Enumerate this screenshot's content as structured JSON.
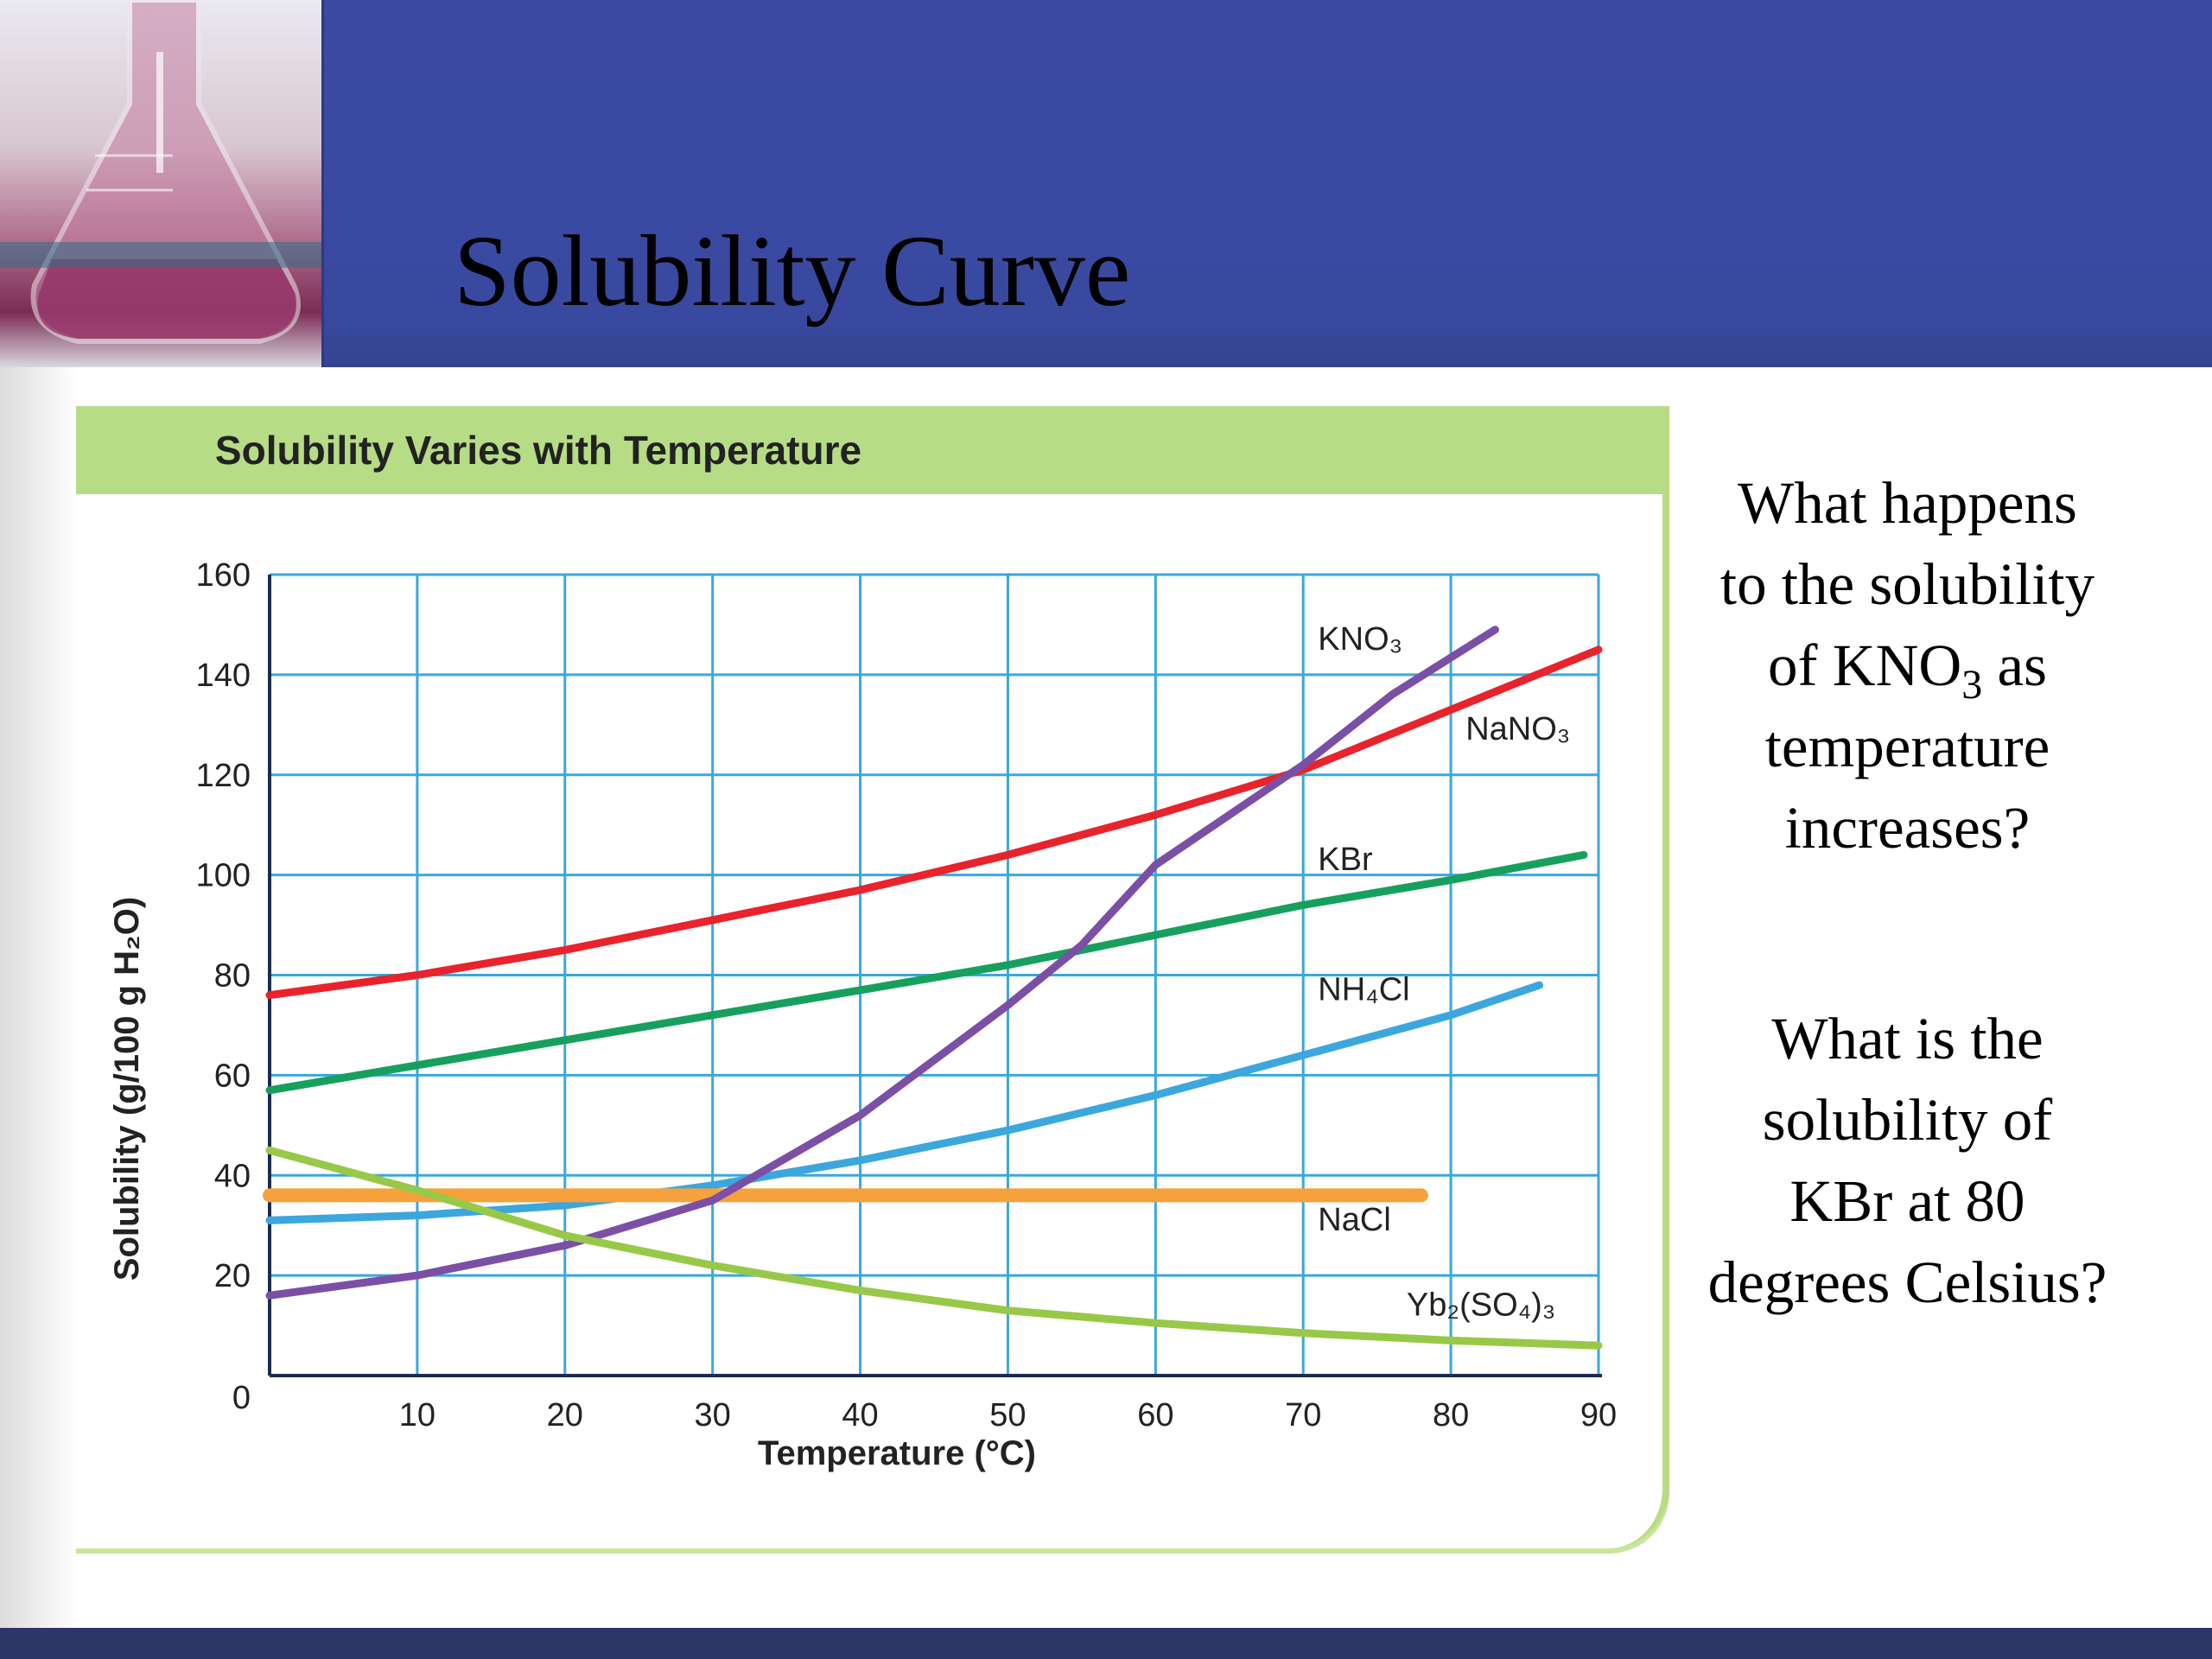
{
  "slide": {
    "title": "Solubility Curve"
  },
  "questions": {
    "q1": {
      "before": "What happens\nto the solubility\nof KNO",
      "sub": "3",
      "after": " as\ntemperature\nincreases?"
    },
    "q2": "What is the\nsolubility of\nKBr at 80\ndegrees Celsius?"
  },
  "chart_data": {
    "type": "line",
    "title": "Solubility Varies with Temperature",
    "xlabel": "Temperature (°C)",
    "ylabel": "Solubility (g/100 g H₂O)",
    "xlim": [
      0,
      90
    ],
    "ylim": [
      0,
      160
    ],
    "xticks": [
      10,
      20,
      30,
      40,
      50,
      60,
      70,
      80,
      90
    ],
    "yticks": [
      20,
      40,
      60,
      80,
      100,
      120,
      140,
      160
    ],
    "origin_label": "0",
    "grid": true,
    "series": [
      {
        "name": "NaNO₃",
        "color": "#e8232b",
        "points": [
          [
            0,
            76
          ],
          [
            10,
            80
          ],
          [
            20,
            85
          ],
          [
            30,
            91
          ],
          [
            40,
            97
          ],
          [
            50,
            104
          ],
          [
            60,
            112
          ],
          [
            70,
            121
          ],
          [
            80,
            133
          ],
          [
            90,
            145
          ]
        ]
      },
      {
        "name": "KBr",
        "color": "#17a05d",
        "points": [
          [
            0,
            57
          ],
          [
            10,
            62
          ],
          [
            20,
            67
          ],
          [
            30,
            72
          ],
          [
            40,
            77
          ],
          [
            50,
            82
          ],
          [
            60,
            88
          ],
          [
            70,
            94
          ],
          [
            80,
            99
          ],
          [
            89,
            104
          ]
        ]
      },
      {
        "name": "NH₄Cl",
        "color": "#3ba7dd",
        "points": [
          [
            0,
            31
          ],
          [
            10,
            32
          ],
          [
            20,
            34
          ],
          [
            30,
            38
          ],
          [
            40,
            43
          ],
          [
            50,
            49
          ],
          [
            60,
            56
          ],
          [
            70,
            64
          ],
          [
            80,
            72
          ],
          [
            86,
            78
          ]
        ]
      },
      {
        "name": "NaCl",
        "color": "#f7a13c",
        "points": [
          [
            0,
            36
          ],
          [
            78,
            36
          ]
        ]
      },
      {
        "name": "KNO₃",
        "color": "#7c4fa6",
        "points": [
          [
            0,
            16
          ],
          [
            10,
            20
          ],
          [
            20,
            26
          ],
          [
            30,
            35
          ],
          [
            40,
            52
          ],
          [
            50,
            74
          ],
          [
            55,
            86
          ],
          [
            60,
            102
          ],
          [
            70,
            122
          ],
          [
            76,
            136
          ],
          [
            83,
            149
          ]
        ]
      },
      {
        "name": "Yb₂(SO₄)₃",
        "color": "#98c848",
        "points": [
          [
            0,
            45
          ],
          [
            10,
            37
          ],
          [
            20,
            28
          ],
          [
            30,
            22
          ],
          [
            40,
            17
          ],
          [
            50,
            13
          ],
          [
            60,
            10.5
          ],
          [
            70,
            8.5
          ],
          [
            80,
            7
          ],
          [
            90,
            6
          ]
        ]
      }
    ],
    "labels": [
      {
        "text": "KNO₃",
        "x": 71,
        "y": 145
      },
      {
        "text": "NaNO₃",
        "x": 81,
        "y": 127
      },
      {
        "text": "KBr",
        "x": 71,
        "y": 101
      },
      {
        "text": "NH₄Cl",
        "x": 71,
        "y": 75
      },
      {
        "text": "NaCl",
        "x": 71,
        "y": 29
      },
      {
        "text": "Yb₂(SO₄)₃",
        "x": 77,
        "y": 12
      }
    ]
  }
}
